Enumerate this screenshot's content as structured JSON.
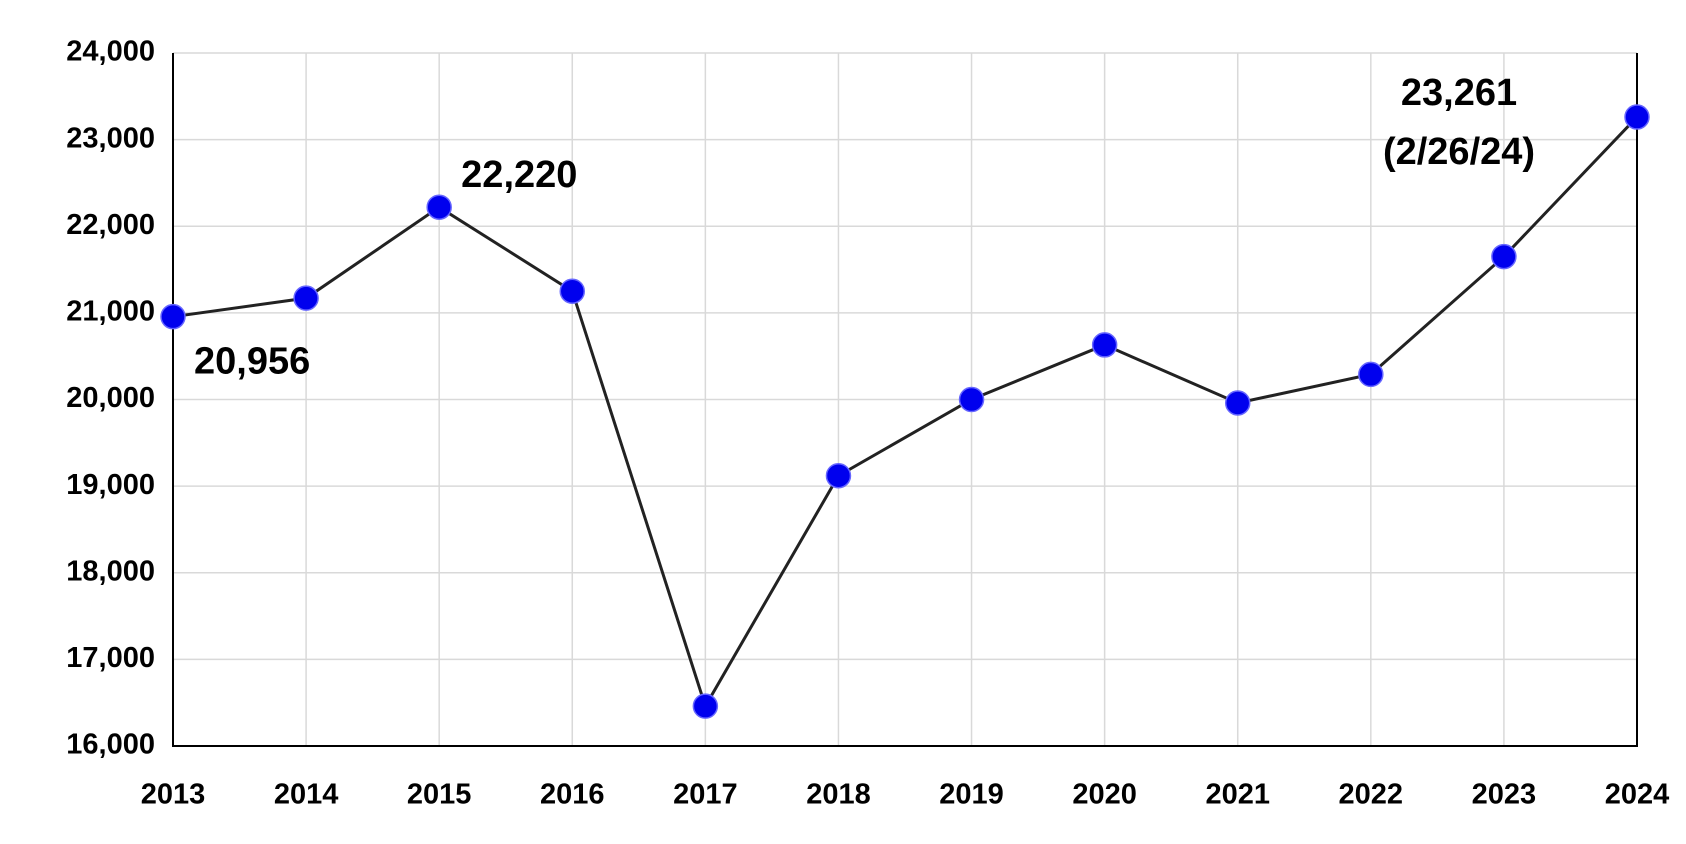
{
  "chart_data": {
    "type": "line",
    "categories": [
      "2013",
      "2014",
      "2015",
      "2016",
      "2017",
      "2018",
      "2019",
      "2020",
      "2021",
      "2022",
      "2023",
      "2024"
    ],
    "series": [
      {
        "color": "#0000ee",
        "line_color": "#222222",
        "values": [
          20956,
          21170,
          22220,
          21250,
          16460,
          19120,
          20000,
          20630,
          19960,
          20290,
          21650,
          23261
        ],
        "value_labels": [
          "20,956",
          null,
          "22,220",
          null,
          null,
          null,
          null,
          null,
          null,
          null,
          null,
          "23,261"
        ]
      }
    ],
    "annotations": [
      "(2/26/24)"
    ],
    "ylim": [
      16000,
      24000
    ],
    "yticks": [
      {
        "value": 16000,
        "label": "16,000"
      },
      {
        "value": 17000,
        "label": "17,000"
      },
      {
        "value": 18000,
        "label": "18,000"
      },
      {
        "value": 19000,
        "label": "19,000"
      },
      {
        "value": 20000,
        "label": "20,000"
      },
      {
        "value": 21000,
        "label": "21,000"
      },
      {
        "value": 22000,
        "label": "22,000"
      },
      {
        "value": 23000,
        "label": "23,000"
      },
      {
        "value": 24000,
        "label": "24,000"
      }
    ],
    "grid": true
  }
}
